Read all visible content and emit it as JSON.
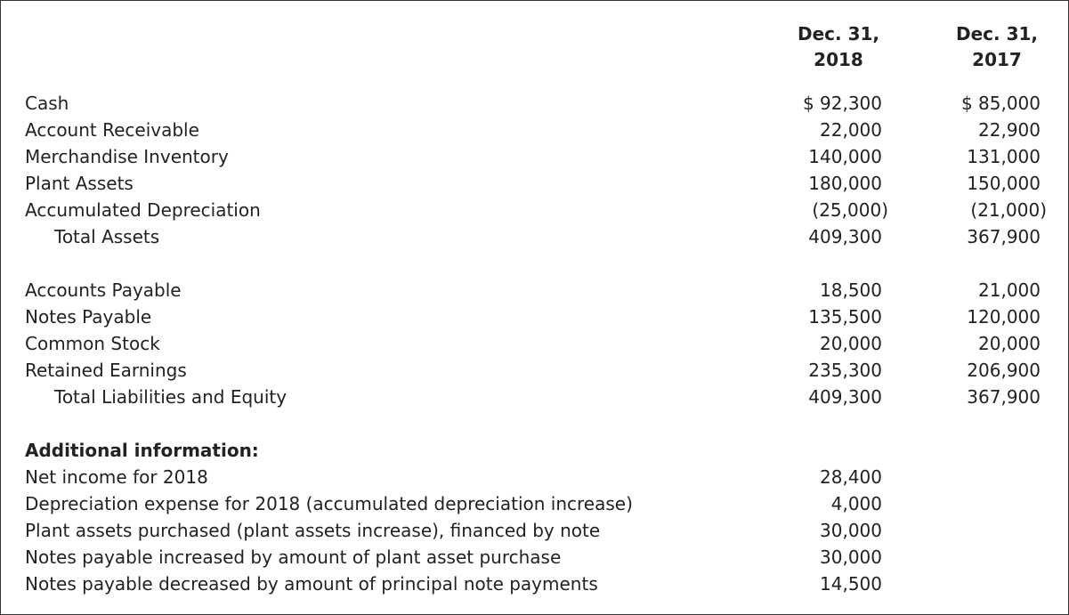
{
  "columns": [
    [
      "Dec. 31,",
      "2018"
    ],
    [
      "Dec. 31,",
      "2017"
    ]
  ],
  "sections": [
    {
      "rows": [
        {
          "label": "Cash",
          "values": [
            "$ 92,300",
            "$ 85,000"
          ]
        },
        {
          "label": "Account Receivable",
          "values": [
            "22,000",
            "22,900"
          ]
        },
        {
          "label": "Merchandise Inventory",
          "values": [
            "140,000",
            "131,000"
          ]
        },
        {
          "label": "Plant Assets",
          "values": [
            "180,000",
            "150,000"
          ]
        },
        {
          "label": "Accumulated Depreciation",
          "values": [
            "(25,000)",
            "(21,000)"
          ]
        },
        {
          "label": "Total Assets",
          "values": [
            "409,300",
            "367,900"
          ],
          "indent": 1
        }
      ]
    },
    {
      "rows": [
        {
          "label": "Accounts Payable",
          "values": [
            "18,500",
            "21,000"
          ]
        },
        {
          "label": "Notes Payable",
          "values": [
            "135,500",
            "120,000"
          ]
        },
        {
          "label": "Common Stock",
          "values": [
            "20,000",
            "20,000"
          ]
        },
        {
          "label": "Retained Earnings",
          "values": [
            "235,300",
            "206,900"
          ]
        },
        {
          "label": "Total Liabilities and Equity",
          "values": [
            "409,300",
            "367,900"
          ],
          "indent": 1
        }
      ]
    }
  ],
  "additional": {
    "title": "Additional information:",
    "rows": [
      {
        "label": "Net income for 2018",
        "values": [
          "28,400"
        ]
      },
      {
        "label": "Depreciation expense for 2018 (accumulated depreciation increase)",
        "values": [
          "4,000"
        ]
      },
      {
        "label": "Plant assets purchased (plant assets increase), financed by note",
        "values": [
          "30,000"
        ]
      },
      {
        "label": "Notes payable increased by amount of plant asset purchase",
        "values": [
          "30,000"
        ]
      },
      {
        "label": "Notes payable decreased by amount of principal note payments",
        "values": [
          "14,500"
        ]
      }
    ]
  }
}
